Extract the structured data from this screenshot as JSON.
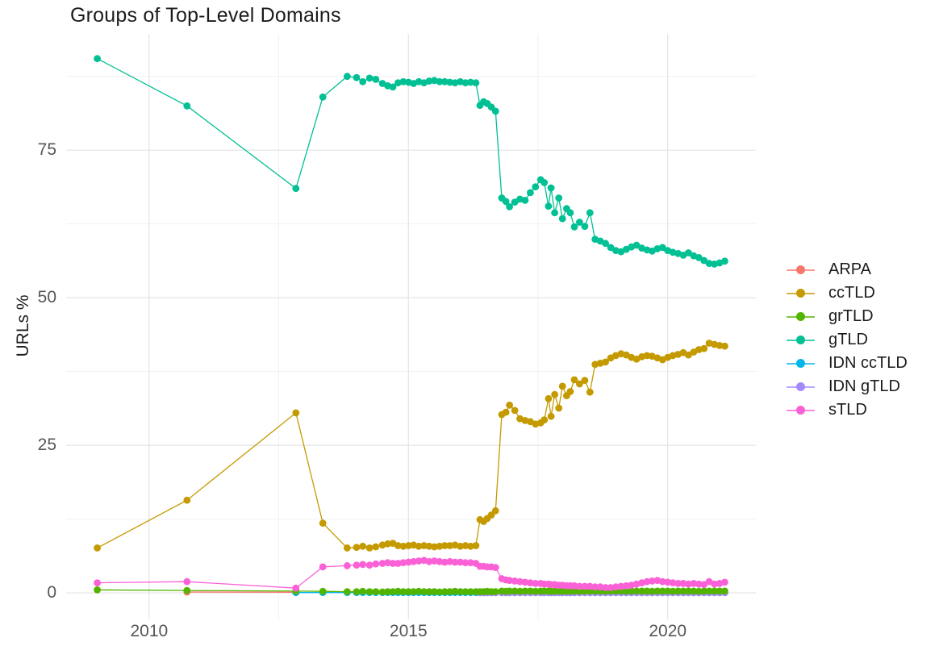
{
  "title": "Groups of Top-Level Domains",
  "ylabel": "URLs %",
  "axes": {
    "x_tick_labels": [
      "2010",
      "2015",
      "2020"
    ],
    "x_tick_values": [
      2010,
      2015,
      2020
    ],
    "x_minor_values": [
      2012.5,
      2017.5
    ],
    "y_tick_labels": [
      "0",
      "25",
      "50",
      "75"
    ],
    "y_tick_values": [
      0,
      25,
      50,
      75
    ],
    "y_minor_values": [
      12.5,
      37.5,
      62.5,
      87.5
    ],
    "x_range": [
      2008.4,
      2021.7
    ],
    "y_range": [
      -4.5,
      94.7
    ],
    "grid": "on",
    "legend_position": "right"
  },
  "colors": {
    "background": "#ffffff",
    "grid_major": "#e4e4e4",
    "grid_minor": "#f1f1f1",
    "tick_text": "#565656",
    "text": "#1c1c1c",
    "arpa": "#F8766D",
    "cctld": "#C49A00",
    "grtld": "#53B400",
    "gtld": "#00C094",
    "idn_cctld": "#00B6EB",
    "idn_gtld": "#A58AFF",
    "stld": "#FB61D7"
  },
  "legend": [
    {
      "label": "ARPA",
      "color": "#F8766D"
    },
    {
      "label": "ccTLD",
      "color": "#C49A00"
    },
    {
      "label": "grTLD",
      "color": "#53B400"
    },
    {
      "label": "gTLD",
      "color": "#00C094"
    },
    {
      "label": "IDN ccTLD",
      "color": "#00B6EB"
    },
    {
      "label": "IDN gTLD",
      "color": "#A58AFF"
    },
    {
      "label": "sTLD",
      "color": "#FB61D7"
    }
  ],
  "chart_data": {
    "type": "line",
    "title": "Groups of Top-Level Domains",
    "xlabel": "",
    "ylabel": "URLs %",
    "x_unit": "year",
    "y_unit": "percent",
    "x_grid": [
      2009,
      2010.73,
      2012.83,
      2013.35,
      2013.82,
      2014,
      2014.12,
      2014.25,
      2014.37,
      2014.5,
      2014.6,
      2014.7,
      2014.8,
      2014.9,
      2015,
      2015.1,
      2015.2,
      2015.3,
      2015.4,
      2015.5,
      2015.6,
      2015.7,
      2015.8,
      2015.9,
      2016,
      2016.1,
      2016.2,
      2016.3,
      2016.38,
      2016.45,
      2016.52,
      2016.6,
      2016.68,
      2016.8,
      2016.88,
      2016.95,
      2017.05,
      2017.15,
      2017.25,
      2017.35,
      2017.45,
      2017.55,
      2017.62,
      2017.7,
      2017.75,
      2017.82,
      2017.9,
      2017.97,
      2018.05,
      2018.12,
      2018.2,
      2018.3,
      2018.4,
      2018.5,
      2018.6,
      2018.7,
      2018.8,
      2018.9,
      2019,
      2019.1,
      2019.2,
      2019.3,
      2019.4,
      2019.5,
      2019.6,
      2019.7,
      2019.8,
      2019.9,
      2020,
      2020.1,
      2020.2,
      2020.3,
      2020.4,
      2020.5,
      2020.6,
      2020.7,
      2020.8,
      2020.9,
      2021,
      2021.1
    ],
    "series": [
      {
        "name": "ARPA",
        "color": "#F8766D",
        "z": 1,
        "x": [
          2010.73,
          2012.83
        ],
        "y": [
          0.15,
          0.1
        ]
      },
      {
        "name": "ccTLD",
        "color": "#C49A00",
        "z": 2,
        "x_from": 0,
        "y": [
          7.6,
          15.7,
          30.5,
          11.8,
          7.6,
          7.7,
          7.9,
          7.6,
          7.8,
          8.1,
          8.3,
          8.4,
          8,
          7.9,
          8,
          8.1,
          7.9,
          8,
          7.9,
          7.8,
          7.9,
          8,
          8,
          8.1,
          7.9,
          8,
          7.9,
          8,
          12.4,
          12.1,
          12.6,
          13.2,
          13.9,
          30.2,
          30.6,
          31.8,
          30.9,
          29.5,
          29.2,
          29,
          28.6,
          28.8,
          29.3,
          32.9,
          29.9,
          33.6,
          31.3,
          35,
          33.4,
          34.1,
          36.1,
          35.4,
          36,
          34,
          38.7,
          38.9,
          39.1,
          39.8,
          40.2,
          40.5,
          40.3,
          39.9,
          39.6,
          40,
          40.2,
          40.1,
          39.8,
          39.5,
          39.9,
          40.2,
          40.4,
          40.7,
          40.3,
          40.8,
          41.2,
          41.4,
          42.3,
          42.1,
          41.9,
          41.8
        ]
      },
      {
        "name": "IDN ccTLD",
        "color": "#00B6EB",
        "z": 3,
        "x_from": 2,
        "y": [
          0.05,
          0.05,
          0.05,
          0.05,
          0.05,
          0.05,
          0.05,
          0.05,
          0.05,
          0.05,
          0.05,
          0.05,
          0.05,
          0.05,
          0.05,
          0.05,
          0.05,
          0.05,
          0.05,
          0.05,
          0.05,
          0.05,
          0.05,
          0.05,
          0.05,
          0.05,
          0.05,
          0.05,
          0.05,
          0.05,
          0.05,
          0.05,
          0.05,
          0.05,
          0.05,
          0.05,
          0.05,
          0.05,
          0.05,
          0.05,
          0.05,
          0.05,
          0.05,
          0.05,
          0.05,
          0.05,
          0.05,
          0.05,
          0.05,
          0.05,
          0.05,
          0.05,
          0.05,
          0.05,
          0.05,
          0.05,
          0.05,
          0.05,
          0.05,
          0.05,
          0.05,
          0.05,
          0.05,
          0.05,
          0.05,
          0.05,
          0.05,
          0.05,
          0.05,
          0.05,
          0.05,
          0.05,
          0.05,
          0.05,
          0.05,
          0.05,
          0.05,
          0.05
        ]
      },
      {
        "name": "IDN gTLD",
        "color": "#A58AFF",
        "z": 4,
        "x_from": 28,
        "y": [
          0.02,
          0.02,
          0.02,
          0.02,
          0.02,
          0.02,
          0.02,
          0.02,
          0.02,
          0.02,
          0.02,
          0.02,
          0.02,
          0.02,
          0.02,
          0.02,
          0.02,
          0.02,
          0.02,
          0.02,
          0.02,
          0.02,
          0.02,
          0.02,
          0.02,
          0.02,
          0.02,
          0.02,
          0.02,
          0.02,
          0.02,
          0.02,
          0.02,
          0.02,
          0.02,
          0.02,
          0.02,
          0.02,
          0.02,
          0.02,
          0.02,
          0.02,
          0.02,
          0.02,
          0.02,
          0.02,
          0.02,
          0.02,
          0.02,
          0.02,
          0.02,
          0.02
        ]
      },
      {
        "name": "grTLD",
        "color": "#53B400",
        "z": 5,
        "x_from": 0,
        "y": [
          0.5,
          0.4,
          0.3,
          0.25,
          0.2,
          0.2,
          0.25,
          0.2,
          0.2,
          0.15,
          0.2,
          0.2,
          0.25,
          0.2,
          0.2,
          0.2,
          0.25,
          0.2,
          0.2,
          0.2,
          0.15,
          0.2,
          0.2,
          0.25,
          0.2,
          0.2,
          0.2,
          0.2,
          0.2,
          0.2,
          0.25,
          0.2,
          0.2,
          0.3,
          0.25,
          0.3,
          0.3,
          0.25,
          0.3,
          0.3,
          0.25,
          0.3,
          0.3,
          0.3,
          0.25,
          0.3,
          0.3,
          0.25,
          0.3,
          0.3,
          0.3,
          0.25,
          0.3,
          0.3,
          0.3,
          0.3,
          0.25,
          0.3,
          0.3,
          0.3,
          0.25,
          0.3,
          0.3,
          0.3,
          0.3,
          0.25,
          0.3,
          0.3,
          0.3,
          0.25,
          0.3,
          0.3,
          0.3,
          0.3,
          0.25,
          0.3,
          0.3,
          0.3,
          0.3,
          0.3
        ]
      },
      {
        "name": "gTLD",
        "color": "#00C094",
        "z": 6,
        "x_from": 0,
        "y": [
          90.5,
          82.5,
          68.5,
          84,
          87.5,
          87.3,
          86.6,
          87.2,
          87,
          86.3,
          85.9,
          85.7,
          86.4,
          86.6,
          86.5,
          86.3,
          86.6,
          86.4,
          86.7,
          86.8,
          86.6,
          86.6,
          86.5,
          86.4,
          86.6,
          86.4,
          86.5,
          86.4,
          82.6,
          83.2,
          82.9,
          82.3,
          81.6,
          66.9,
          66.3,
          65.4,
          66.2,
          66.7,
          66.5,
          67.8,
          68.8,
          70,
          69.5,
          65.5,
          68.6,
          64.4,
          66.9,
          63.4,
          65.1,
          64.4,
          62,
          62.8,
          62.1,
          64.4,
          59.9,
          59.6,
          59.2,
          58.5,
          58,
          57.8,
          58.2,
          58.6,
          58.9,
          58.4,
          58.1,
          57.9,
          58.3,
          58.5,
          58,
          57.7,
          57.5,
          57.2,
          57.6,
          57.1,
          56.8,
          56.3,
          55.8,
          55.7,
          55.9,
          56.2
        ]
      },
      {
        "name": "sTLD",
        "color": "#FB61D7",
        "z": 7,
        "x_from": 0,
        "y": [
          1.7,
          1.9,
          0.8,
          4.4,
          4.6,
          4.7,
          4.8,
          4.7,
          4.9,
          5,
          5.1,
          5,
          5,
          5.1,
          5.2,
          5.3,
          5.4,
          5.5,
          5.3,
          5.4,
          5.3,
          5.2,
          5.3,
          5.2,
          5.2,
          5.1,
          5.1,
          5,
          4.5,
          4.5,
          4.4,
          4.4,
          4.3,
          2.4,
          2.2,
          2.1,
          2,
          1.9,
          1.8,
          1.7,
          1.6,
          1.6,
          1.5,
          1.5,
          1.4,
          1.4,
          1.3,
          1.3,
          1.2,
          1.2,
          1.2,
          1.1,
          1.1,
          1.1,
          1,
          1,
          0.9,
          0.9,
          1,
          1.1,
          1.2,
          1.3,
          1.5,
          1.7,
          1.9,
          2,
          2.1,
          1.9,
          1.8,
          1.7,
          1.6,
          1.6,
          1.5,
          1.6,
          1.5,
          1.4,
          1.9,
          1.5,
          1.6,
          1.8
        ]
      }
    ]
  }
}
